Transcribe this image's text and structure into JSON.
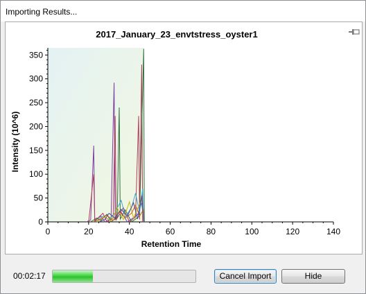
{
  "window": {
    "title": "Importing Results..."
  },
  "chart_data": {
    "type": "line",
    "title": "2017_January_23_envtstress_oyster1",
    "xlabel": "Retention Time",
    "ylabel": "Intensity (10^6)",
    "xlim": [
      0,
      140
    ],
    "ylim": [
      0,
      365
    ],
    "xticks": [
      0,
      20,
      40,
      60,
      80,
      100,
      120,
      140
    ],
    "yticks": [
      0,
      50,
      100,
      150,
      200,
      250,
      300,
      350
    ],
    "shaded_region": [
      0,
      47
    ],
    "series": [
      {
        "color": "#7a3fa0",
        "points": [
          [
            19,
            0
          ],
          [
            21,
            4
          ],
          [
            22.5,
            160
          ],
          [
            23,
            3
          ],
          [
            26,
            12
          ],
          [
            28,
            0
          ],
          [
            31,
            6
          ],
          [
            32.5,
            292
          ],
          [
            33,
            5
          ],
          [
            36,
            20
          ],
          [
            39,
            0
          ],
          [
            44,
            15
          ],
          [
            46,
            40
          ],
          [
            47,
            0
          ]
        ]
      },
      {
        "color": "#b33a5b",
        "points": [
          [
            20,
            0
          ],
          [
            22.5,
            100
          ],
          [
            23,
            2
          ],
          [
            27,
            18
          ],
          [
            29,
            0
          ],
          [
            32,
            8
          ],
          [
            33,
            222
          ],
          [
            33.5,
            4
          ],
          [
            37,
            30
          ],
          [
            40,
            0
          ],
          [
            43,
            10
          ],
          [
            44.5,
            222
          ],
          [
            45,
            5
          ],
          [
            46,
            330
          ],
          [
            46.5,
            0
          ]
        ]
      },
      {
        "color": "#2a6e3a",
        "points": [
          [
            21,
            0
          ],
          [
            24,
            8
          ],
          [
            26,
            3
          ],
          [
            29,
            16
          ],
          [
            31,
            0
          ],
          [
            34,
            10
          ],
          [
            35,
            240
          ],
          [
            35.5,
            6
          ],
          [
            38,
            25
          ],
          [
            41,
            0
          ],
          [
            45,
            12
          ],
          [
            47,
            363
          ],
          [
            47.3,
            0
          ]
        ]
      },
      {
        "color": "#3aa7d6",
        "points": [
          [
            23,
            0
          ],
          [
            27,
            12
          ],
          [
            30,
            4
          ],
          [
            33,
            20
          ],
          [
            36,
            45
          ],
          [
            38,
            10
          ],
          [
            41,
            30
          ],
          [
            43,
            60
          ],
          [
            45,
            20
          ],
          [
            46.5,
            70
          ],
          [
            47,
            0
          ]
        ]
      },
      {
        "color": "#c8b818",
        "points": [
          [
            24,
            0
          ],
          [
            28,
            10
          ],
          [
            31,
            2
          ],
          [
            34,
            30
          ],
          [
            37,
            5
          ],
          [
            40,
            42
          ],
          [
            42,
            8
          ],
          [
            44,
            28
          ],
          [
            46,
            48
          ],
          [
            47,
            0
          ]
        ]
      },
      {
        "color": "#d05a1e",
        "points": [
          [
            22,
            0
          ],
          [
            26,
            6
          ],
          [
            29,
            14
          ],
          [
            32,
            3
          ],
          [
            35,
            22
          ],
          [
            38,
            8
          ],
          [
            41,
            18
          ],
          [
            43,
            35
          ],
          [
            45,
            12
          ],
          [
            46.8,
            25
          ],
          [
            47,
            0
          ]
        ]
      },
      {
        "color": "#4a4a9a",
        "points": [
          [
            25,
            0
          ],
          [
            28,
            5
          ],
          [
            30,
            18
          ],
          [
            33,
            8
          ],
          [
            36,
            26
          ],
          [
            39,
            12
          ],
          [
            42,
            40
          ],
          [
            44,
            6
          ],
          [
            46,
            55
          ],
          [
            47,
            0
          ]
        ]
      }
    ]
  },
  "bottom": {
    "elapsed": "00:02:17",
    "progress": 0.28,
    "cancel_label": "Cancel Import",
    "hide_label": "Hide"
  }
}
